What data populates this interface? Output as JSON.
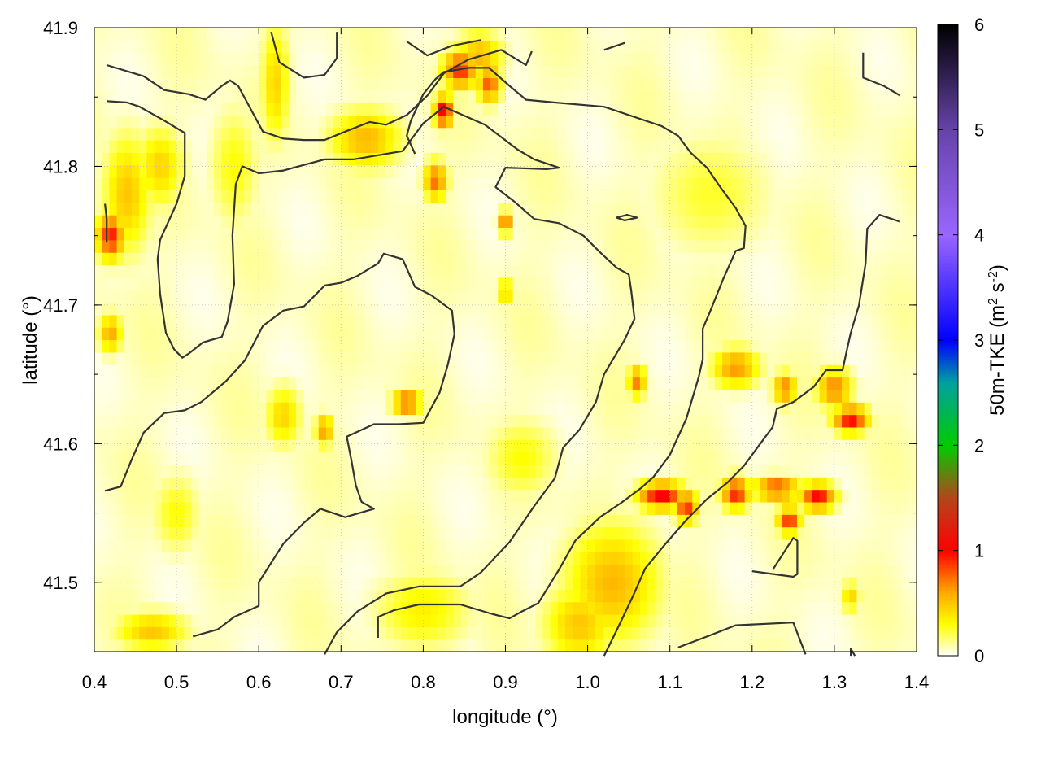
{
  "chart_data": {
    "type": "heatmap",
    "title": "",
    "xlabel": "longitude (°)",
    "ylabel": "latitude (°)",
    "colorbar_label": "50m-TKE (m² s⁻²)",
    "colorbar_label_parts": {
      "base": "50m-TKE (m",
      "sup1": "2",
      "mid": " s",
      "sup2": "-2",
      "end": ")"
    },
    "xlim": [
      0.4,
      1.4
    ],
    "ylim": [
      41.45,
      41.9
    ],
    "clim": [
      0,
      6
    ],
    "x_ticks": [
      0.4,
      0.5,
      0.6,
      0.7,
      0.8,
      0.9,
      1.0,
      1.1,
      1.2,
      1.3,
      1.4
    ],
    "x_tick_labels": [
      "0.4",
      "0.5",
      "0.6",
      "0.7",
      "0.8",
      "0.9",
      "1.0",
      "1.1",
      "1.2",
      "1.3",
      "1.4"
    ],
    "y_ticks": [
      41.5,
      41.6,
      41.7,
      41.8,
      41.9
    ],
    "y_tick_labels": [
      "41.5",
      "41.6",
      "41.7",
      "41.8",
      "41.9"
    ],
    "cb_ticks": [
      0,
      1,
      2,
      3,
      4,
      5,
      6
    ],
    "cb_tick_labels": [
      "0",
      "1",
      "2",
      "3",
      "4",
      "5",
      "6"
    ],
    "grid": true,
    "colormap": [
      {
        "v": 0.0,
        "c": "#ffffff"
      },
      {
        "v": 0.3,
        "c": "#ffff00"
      },
      {
        "v": 0.6,
        "c": "#ffaa00"
      },
      {
        "v": 1.0,
        "c": "#ff0000"
      },
      {
        "v": 1.5,
        "c": "#b5451b"
      },
      {
        "v": 2.0,
        "c": "#00cc00"
      },
      {
        "v": 2.6,
        "c": "#00a0a0"
      },
      {
        "v": 3.0,
        "c": "#0000ff"
      },
      {
        "v": 4.0,
        "c": "#9966ff"
      },
      {
        "v": 5.0,
        "c": "#6644aa"
      },
      {
        "v": 6.0,
        "c": "#000000"
      }
    ],
    "background_level": 0.12,
    "features": [
      {
        "x": 0.42,
        "y": 41.75,
        "sx": 0.012,
        "sy": 0.012,
        "v": 0.95
      },
      {
        "x": 0.44,
        "y": 41.78,
        "sx": 0.02,
        "sy": 0.03,
        "v": 0.5
      },
      {
        "x": 0.48,
        "y": 41.8,
        "sx": 0.02,
        "sy": 0.02,
        "v": 0.45
      },
      {
        "x": 0.42,
        "y": 41.68,
        "sx": 0.01,
        "sy": 0.01,
        "v": 0.6
      },
      {
        "x": 0.62,
        "y": 41.86,
        "sx": 0.012,
        "sy": 0.03,
        "v": 0.45
      },
      {
        "x": 0.73,
        "y": 41.82,
        "sx": 0.03,
        "sy": 0.015,
        "v": 0.55
      },
      {
        "x": 0.845,
        "y": 41.87,
        "sx": 0.015,
        "sy": 0.01,
        "v": 0.9
      },
      {
        "x": 0.868,
        "y": 41.88,
        "sx": 0.02,
        "sy": 0.012,
        "v": 0.55
      },
      {
        "x": 0.825,
        "y": 41.84,
        "sx": 0.008,
        "sy": 0.008,
        "v": 1.05
      },
      {
        "x": 0.88,
        "y": 41.86,
        "sx": 0.01,
        "sy": 0.01,
        "v": 0.8
      },
      {
        "x": 0.815,
        "y": 41.79,
        "sx": 0.01,
        "sy": 0.01,
        "v": 0.75
      },
      {
        "x": 0.9,
        "y": 41.76,
        "sx": 0.006,
        "sy": 0.006,
        "v": 0.8
      },
      {
        "x": 0.9,
        "y": 41.71,
        "sx": 0.006,
        "sy": 0.006,
        "v": 0.55
      },
      {
        "x": 0.78,
        "y": 41.63,
        "sx": 0.012,
        "sy": 0.006,
        "v": 0.85
      },
      {
        "x": 0.68,
        "y": 41.61,
        "sx": 0.008,
        "sy": 0.008,
        "v": 0.65
      },
      {
        "x": 0.63,
        "y": 41.62,
        "sx": 0.015,
        "sy": 0.015,
        "v": 0.45
      },
      {
        "x": 1.06,
        "y": 41.645,
        "sx": 0.008,
        "sy": 0.008,
        "v": 0.7
      },
      {
        "x": 1.18,
        "y": 41.655,
        "sx": 0.02,
        "sy": 0.01,
        "v": 0.65
      },
      {
        "x": 1.24,
        "y": 41.64,
        "sx": 0.01,
        "sy": 0.008,
        "v": 0.7
      },
      {
        "x": 1.3,
        "y": 41.64,
        "sx": 0.015,
        "sy": 0.01,
        "v": 0.7
      },
      {
        "x": 1.32,
        "y": 41.618,
        "sx": 0.015,
        "sy": 0.007,
        "v": 1.0
      },
      {
        "x": 1.09,
        "y": 41.563,
        "sx": 0.02,
        "sy": 0.007,
        "v": 1.05
      },
      {
        "x": 1.12,
        "y": 41.555,
        "sx": 0.01,
        "sy": 0.008,
        "v": 0.9
      },
      {
        "x": 1.18,
        "y": 41.565,
        "sx": 0.012,
        "sy": 0.008,
        "v": 0.95
      },
      {
        "x": 1.23,
        "y": 41.568,
        "sx": 0.02,
        "sy": 0.006,
        "v": 0.85
      },
      {
        "x": 1.28,
        "y": 41.562,
        "sx": 0.015,
        "sy": 0.007,
        "v": 1.0
      },
      {
        "x": 1.245,
        "y": 41.545,
        "sx": 0.01,
        "sy": 0.007,
        "v": 0.9
      },
      {
        "x": 1.03,
        "y": 41.5,
        "sx": 0.04,
        "sy": 0.03,
        "v": 0.55
      },
      {
        "x": 0.99,
        "y": 41.47,
        "sx": 0.03,
        "sy": 0.02,
        "v": 0.5
      },
      {
        "x": 0.47,
        "y": 41.465,
        "sx": 0.03,
        "sy": 0.01,
        "v": 0.5
      },
      {
        "x": 0.8,
        "y": 41.48,
        "sx": 0.04,
        "sy": 0.02,
        "v": 0.35
      },
      {
        "x": 0.92,
        "y": 41.59,
        "sx": 0.03,
        "sy": 0.02,
        "v": 0.3
      },
      {
        "x": 1.32,
        "y": 41.49,
        "sx": 0.008,
        "sy": 0.008,
        "v": 0.45
      },
      {
        "x": 0.5,
        "y": 41.55,
        "sx": 0.02,
        "sy": 0.02,
        "v": 0.3
      },
      {
        "x": 1.15,
        "y": 41.78,
        "sx": 0.05,
        "sy": 0.03,
        "v": 0.25
      },
      {
        "x": 0.57,
        "y": 41.8,
        "sx": 0.02,
        "sy": 0.03,
        "v": 0.3
      }
    ],
    "contours": [
      [
        [
          0.415,
          41.873
        ],
        [
          0.46,
          41.865
        ],
        [
          0.485,
          41.855
        ],
        [
          0.515,
          41.852
        ],
        [
          0.535,
          41.848
        ],
        [
          0.555,
          41.858
        ],
        [
          0.565,
          41.862
        ],
        [
          0.575,
          41.858
        ],
        [
          0.605,
          41.825
        ],
        [
          0.63,
          41.82
        ],
        [
          0.655,
          41.819
        ],
        [
          0.68,
          41.819
        ],
        [
          0.705,
          41.825
        ],
        [
          0.735,
          41.832
        ],
        [
          0.755,
          41.83
        ],
        [
          0.78,
          41.837
        ],
        [
          0.805,
          41.851
        ],
        [
          0.825,
          41.867
        ],
        [
          0.855,
          41.877
        ],
        [
          0.895,
          41.884
        ],
        [
          0.925,
          41.873
        ],
        [
          0.932,
          41.883
        ]
      ],
      [
        [
          0.415,
          41.847
        ],
        [
          0.44,
          41.846
        ],
        [
          0.455,
          41.843
        ],
        [
          0.485,
          41.833
        ],
        [
          0.51,
          41.824
        ],
        [
          0.51,
          41.808
        ],
        [
          0.51,
          41.793
        ],
        [
          0.5,
          41.773
        ],
        [
          0.48,
          41.747
        ],
        [
          0.477,
          41.733
        ],
        [
          0.48,
          41.708
        ],
        [
          0.482,
          41.7
        ],
        [
          0.487,
          41.68
        ],
        [
          0.497,
          41.668
        ],
        [
          0.507,
          41.662
        ],
        [
          0.515,
          41.665
        ],
        [
          0.532,
          41.673
        ],
        [
          0.555,
          41.677
        ],
        [
          0.562,
          41.688
        ],
        [
          0.57,
          41.715
        ],
        [
          0.568,
          41.75
        ],
        [
          0.572,
          41.787
        ],
        [
          0.58,
          41.8
        ],
        [
          0.6,
          41.795
        ],
        [
          0.63,
          41.797
        ],
        [
          0.68,
          41.805
        ],
        [
          0.715,
          41.805
        ],
        [
          0.775,
          41.811
        ],
        [
          0.8,
          41.831
        ],
        [
          0.825,
          41.843
        ],
        [
          0.875,
          41.83
        ],
        [
          0.915,
          41.812
        ],
        [
          0.935,
          41.805
        ],
        [
          0.965,
          41.799
        ],
        [
          0.95,
          41.798
        ],
        [
          0.9,
          41.799
        ],
        [
          0.888,
          41.785
        ],
        [
          0.91,
          41.775
        ],
        [
          0.935,
          41.762
        ],
        [
          0.965,
          41.759
        ],
        [
          0.995,
          41.75
        ],
        [
          1.015,
          41.738
        ],
        [
          1.035,
          41.727
        ],
        [
          1.05,
          41.722
        ],
        [
          1.053,
          41.71
        ],
        [
          1.057,
          41.69
        ],
        [
          1.045,
          41.675
        ],
        [
          1.02,
          41.65
        ],
        [
          1.01,
          41.63
        ],
        [
          0.99,
          41.61
        ],
        [
          0.97,
          41.597
        ],
        [
          0.96,
          41.575
        ],
        [
          0.935,
          41.555
        ],
        [
          0.905,
          41.529
        ],
        [
          0.87,
          41.507
        ],
        [
          0.845,
          41.497
        ],
        [
          0.795,
          41.497
        ],
        [
          0.755,
          41.492
        ],
        [
          0.72,
          41.479
        ],
        [
          0.695,
          41.464
        ],
        [
          0.68,
          41.448
        ]
      ],
      [
        [
          0.413,
          41.566
        ],
        [
          0.432,
          41.569
        ],
        [
          0.445,
          41.588
        ],
        [
          0.46,
          41.608
        ],
        [
          0.485,
          41.622
        ],
        [
          0.51,
          41.624
        ],
        [
          0.53,
          41.63
        ],
        [
          0.56,
          41.645
        ],
        [
          0.583,
          41.66
        ],
        [
          0.605,
          41.685
        ],
        [
          0.63,
          41.696
        ],
        [
          0.655,
          41.699
        ],
        [
          0.68,
          41.714
        ],
        [
          0.7,
          41.716
        ],
        [
          0.72,
          41.721
        ],
        [
          0.745,
          41.73
        ],
        [
          0.752,
          41.737
        ],
        [
          0.775,
          41.733
        ],
        [
          0.79,
          41.713
        ],
        [
          0.81,
          41.707
        ],
        [
          0.835,
          41.696
        ],
        [
          0.838,
          41.679
        ],
        [
          0.83,
          41.657
        ],
        [
          0.82,
          41.637
        ],
        [
          0.8,
          41.615
        ],
        [
          0.77,
          41.614
        ],
        [
          0.74,
          41.614
        ],
        [
          0.707,
          41.605
        ],
        [
          0.713,
          41.587
        ],
        [
          0.718,
          41.57
        ],
        [
          0.725,
          41.558
        ],
        [
          0.74,
          41.553
        ],
        [
          0.705,
          41.547
        ],
        [
          0.675,
          41.553
        ],
        [
          0.655,
          41.543
        ],
        [
          0.63,
          41.528
        ],
        [
          0.6,
          41.5
        ],
        [
          0.6,
          41.483
        ],
        [
          0.57,
          41.475
        ],
        [
          0.55,
          41.466
        ],
        [
          0.52,
          41.461
        ]
      ],
      [
        [
          0.745,
          41.46
        ],
        [
          0.745,
          41.475
        ],
        [
          0.765,
          41.48
        ],
        [
          0.795,
          41.484
        ],
        [
          0.845,
          41.484
        ],
        [
          0.885,
          41.477
        ],
        [
          0.905,
          41.474
        ],
        [
          0.92,
          41.479
        ],
        [
          0.94,
          41.485
        ],
        [
          0.965,
          41.509
        ],
        [
          0.985,
          41.53
        ],
        [
          1.015,
          41.547
        ],
        [
          1.04,
          41.557
        ],
        [
          1.065,
          41.568
        ],
        [
          1.08,
          41.576
        ],
        [
          1.1,
          41.592
        ],
        [
          1.12,
          41.618
        ],
        [
          1.135,
          41.648
        ],
        [
          1.14,
          41.661
        ],
        [
          1.14,
          41.683
        ],
        [
          1.148,
          41.694
        ],
        [
          1.165,
          41.719
        ],
        [
          1.18,
          41.739
        ],
        [
          1.19,
          41.741
        ],
        [
          1.192,
          41.757
        ],
        [
          1.18,
          41.77
        ],
        [
          1.16,
          41.786
        ],
        [
          1.145,
          41.799
        ],
        [
          1.125,
          41.81
        ],
        [
          1.11,
          41.822
        ],
        [
          1.09,
          41.829
        ],
        [
          1.05,
          41.837
        ],
        [
          1.02,
          41.843
        ],
        [
          0.96,
          41.846
        ],
        [
          0.925,
          41.848
        ],
        [
          0.905,
          41.858
        ],
        [
          0.88,
          41.871
        ],
        [
          0.855,
          41.871
        ],
        [
          0.825,
          41.868
        ],
        [
          0.815,
          41.863
        ],
        [
          0.8,
          41.852
        ],
        [
          0.785,
          41.833
        ],
        [
          0.78,
          41.822
        ],
        [
          0.79,
          41.809
        ]
      ],
      [
        [
          1.02,
          41.447
        ],
        [
          1.035,
          41.465
        ],
        [
          1.055,
          41.49
        ],
        [
          1.07,
          41.51
        ],
        [
          1.095,
          41.528
        ],
        [
          1.12,
          41.545
        ],
        [
          1.145,
          41.56
        ],
        [
          1.17,
          41.572
        ],
        [
          1.19,
          41.584
        ],
        [
          1.21,
          41.6
        ],
        [
          1.225,
          41.612
        ],
        [
          1.23,
          41.625
        ],
        [
          1.25,
          41.63
        ],
        [
          1.275,
          41.641
        ],
        [
          1.29,
          41.653
        ],
        [
          1.31,
          41.653
        ],
        [
          1.315,
          41.667
        ],
        [
          1.32,
          41.68
        ],
        [
          1.33,
          41.7
        ],
        [
          1.338,
          41.73
        ],
        [
          1.34,
          41.755
        ],
        [
          1.355,
          41.765
        ],
        [
          1.38,
          41.76
        ]
      ],
      [
        [
          1.11,
          41.453
        ],
        [
          1.15,
          41.462
        ],
        [
          1.18,
          41.469
        ],
        [
          1.25,
          41.471
        ],
        [
          1.265,
          41.448
        ]
      ],
      [
        [
          1.2,
          41.508
        ],
        [
          1.25,
          41.504
        ],
        [
          1.255,
          41.506
        ],
        [
          1.255,
          41.53
        ],
        [
          1.25,
          41.532
        ],
        [
          1.225,
          41.509
        ]
      ],
      [
        [
          1.035,
          41.763
        ],
        [
          1.048,
          41.765
        ],
        [
          1.06,
          41.763
        ],
        [
          1.045,
          41.761
        ],
        [
          1.035,
          41.763
        ]
      ],
      [
        [
          0.413,
          41.773
        ],
        [
          0.415,
          41.762
        ],
        [
          0.415,
          41.745
        ]
      ],
      [
        [
          0.615,
          41.897
        ],
        [
          0.625,
          41.875
        ],
        [
          0.655,
          41.864
        ],
        [
          0.68,
          41.866
        ],
        [
          0.695,
          41.878
        ],
        [
          0.695,
          41.897
        ]
      ],
      [
        [
          0.78,
          41.89
        ],
        [
          0.805,
          41.88
        ],
        [
          0.835,
          41.887
        ],
        [
          0.87,
          41.891
        ]
      ],
      [
        [
          1.02,
          41.884
        ],
        [
          1.045,
          41.889
        ]
      ],
      [
        [
          1.335,
          41.882
        ],
        [
          1.335,
          41.864
        ],
        [
          1.36,
          41.858
        ],
        [
          1.38,
          41.851
        ]
      ],
      [
        [
          1.32,
          41.447
        ],
        [
          1.32,
          41.452
        ],
        [
          1.325,
          41.447
        ]
      ]
    ]
  }
}
